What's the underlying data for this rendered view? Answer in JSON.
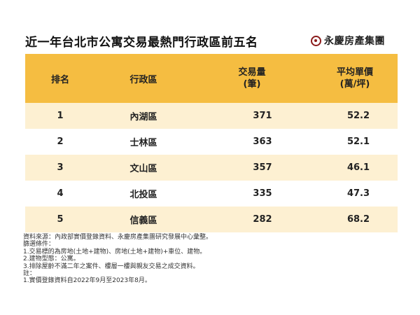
{
  "title": "近一年台北市公寓交易最熱門行政區前五名",
  "logo": {
    "text": "永慶房產集團",
    "icon": "yungching-logo-icon",
    "color": "#8b1c1c"
  },
  "table": {
    "header_color": "#f5bd41",
    "alt_row_color": "#fdf0d2",
    "headers": {
      "rank": "排名",
      "district": "行政區",
      "volume_line1": "交易量",
      "volume_line2": "(筆)",
      "price_line1": "平均單價",
      "price_line2": "(萬/坪)"
    },
    "rows": [
      {
        "rank": "1",
        "district": "內湖區",
        "volume": "371",
        "price": "52.2"
      },
      {
        "rank": "2",
        "district": "士林區",
        "volume": "363",
        "price": "52.1"
      },
      {
        "rank": "3",
        "district": "文山區",
        "volume": "357",
        "price": "46.1"
      },
      {
        "rank": "4",
        "district": "北投區",
        "volume": "335",
        "price": "47.3"
      },
      {
        "rank": "5",
        "district": "信義區",
        "volume": "282",
        "price": "68.2"
      }
    ]
  },
  "notes": [
    "資料來源：內政部實價登錄資料、永慶房產集團研究發展中心彙整。",
    "篩選條件：",
    "1.交易標的為房地(土地+建物)、房地(土地+建物)+車位、建物。",
    "2.建物型態：公寓。",
    "3.排除屋齡不滿二年之案件、樓層一樓與親友交易之成交資料。",
    "註：",
    "1.實價登錄資料自2022年9月至2023年8月。"
  ]
}
